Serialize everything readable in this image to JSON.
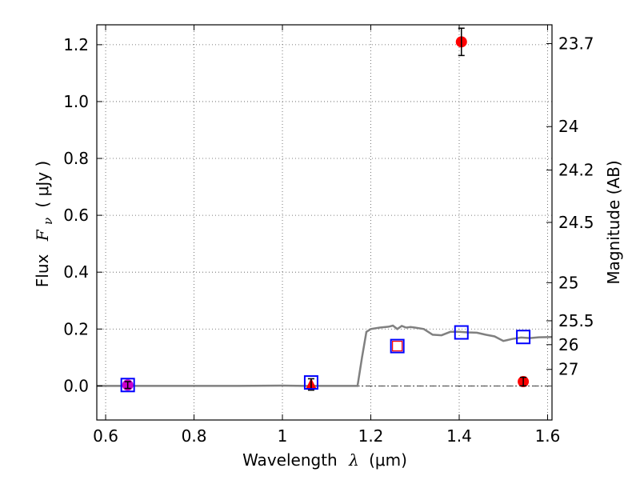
{
  "chart_data": {
    "type": "scatter",
    "title": "",
    "xlabel_main": "Wavelength",
    "xlabel_symbol": "λ",
    "xlabel_unit": "(μm)",
    "ylabel_main": "Flux",
    "ylabel_symbol": "F",
    "ylabel_subscript": "ν",
    "ylabel_unit": "( μJy )",
    "y2label": "Magnitude (AB)",
    "xlim": [
      0.58,
      1.61
    ],
    "ylim": [
      -0.12,
      1.27
    ],
    "grid": true,
    "x_ticks": [
      0.6,
      0.8,
      1.0,
      1.2,
      1.4,
      1.6
    ],
    "x_tick_labels": [
      "0.6",
      "0.8",
      "1",
      "1.2",
      "1.4",
      "1.6"
    ],
    "y_ticks": [
      0.0,
      0.2,
      0.4,
      0.6,
      0.8,
      1.0,
      1.2
    ],
    "y_tick_labels": [
      "0.0",
      "0.2",
      "0.4",
      "0.6",
      "0.8",
      "1.0",
      "1.2"
    ],
    "y2_ticks": [
      {
        "flux": 1.204,
        "label": "23.7"
      },
      {
        "flux": 0.912,
        "label": "24"
      },
      {
        "flux": 0.759,
        "label": "24.2"
      },
      {
        "flux": 0.575,
        "label": "24.5"
      },
      {
        "flux": 0.363,
        "label": "25"
      },
      {
        "flux": 0.229,
        "label": "25.5"
      },
      {
        "flux": 0.145,
        "label": "26"
      },
      {
        "flux": 0.058,
        "label": "27"
      }
    ],
    "model_sed": {
      "color": "#808080",
      "x": [
        0.58,
        0.9,
        1.0,
        1.05,
        1.17,
        1.18,
        1.19,
        1.2,
        1.22,
        1.24,
        1.25,
        1.26,
        1.27,
        1.28,
        1.29,
        1.3,
        1.32,
        1.34,
        1.36,
        1.38,
        1.4,
        1.42,
        1.44,
        1.46,
        1.48,
        1.5,
        1.52,
        1.54,
        1.56,
        1.58,
        1.61
      ],
      "y": [
        0.0,
        0.0,
        0.001,
        0.0,
        0.0,
        0.1,
        0.19,
        0.2,
        0.205,
        0.208,
        0.212,
        0.2,
        0.211,
        0.205,
        0.207,
        0.205,
        0.2,
        0.18,
        0.178,
        0.19,
        0.19,
        0.188,
        0.187,
        0.18,
        0.174,
        0.158,
        0.165,
        0.17,
        0.168,
        0.171,
        0.172
      ]
    },
    "model_points": [
      {
        "x": 0.65,
        "y": 0.003,
        "color": "#0000ff"
      },
      {
        "x": 1.065,
        "y": 0.012,
        "color": "#0000ff"
      },
      {
        "x": 1.26,
        "y": 0.14,
        "color": "#0000ff"
      },
      {
        "x": 1.405,
        "y": 0.188,
        "color": "#0000ff"
      },
      {
        "x": 1.545,
        "y": 0.172,
        "color": "#0000ff"
      }
    ],
    "observed_points": [
      {
        "x": 0.65,
        "y": 0.003,
        "err": 0.012,
        "color": "#cc00cc",
        "marker": "circle"
      },
      {
        "x": 1.065,
        "y": 0.005,
        "err": 0.02,
        "color": "#ff0000",
        "marker": "triangle"
      },
      {
        "x": 1.26,
        "y": 0.14,
        "err": 0,
        "color": "#ff0000",
        "marker": "square"
      },
      {
        "x": 1.405,
        "y": 1.21,
        "err": 0.048,
        "color": "#ff0000",
        "marker": "circle"
      },
      {
        "x": 1.545,
        "y": 0.015,
        "err": 0.015,
        "color": "#ff0000",
        "marker": "circle"
      }
    ]
  }
}
